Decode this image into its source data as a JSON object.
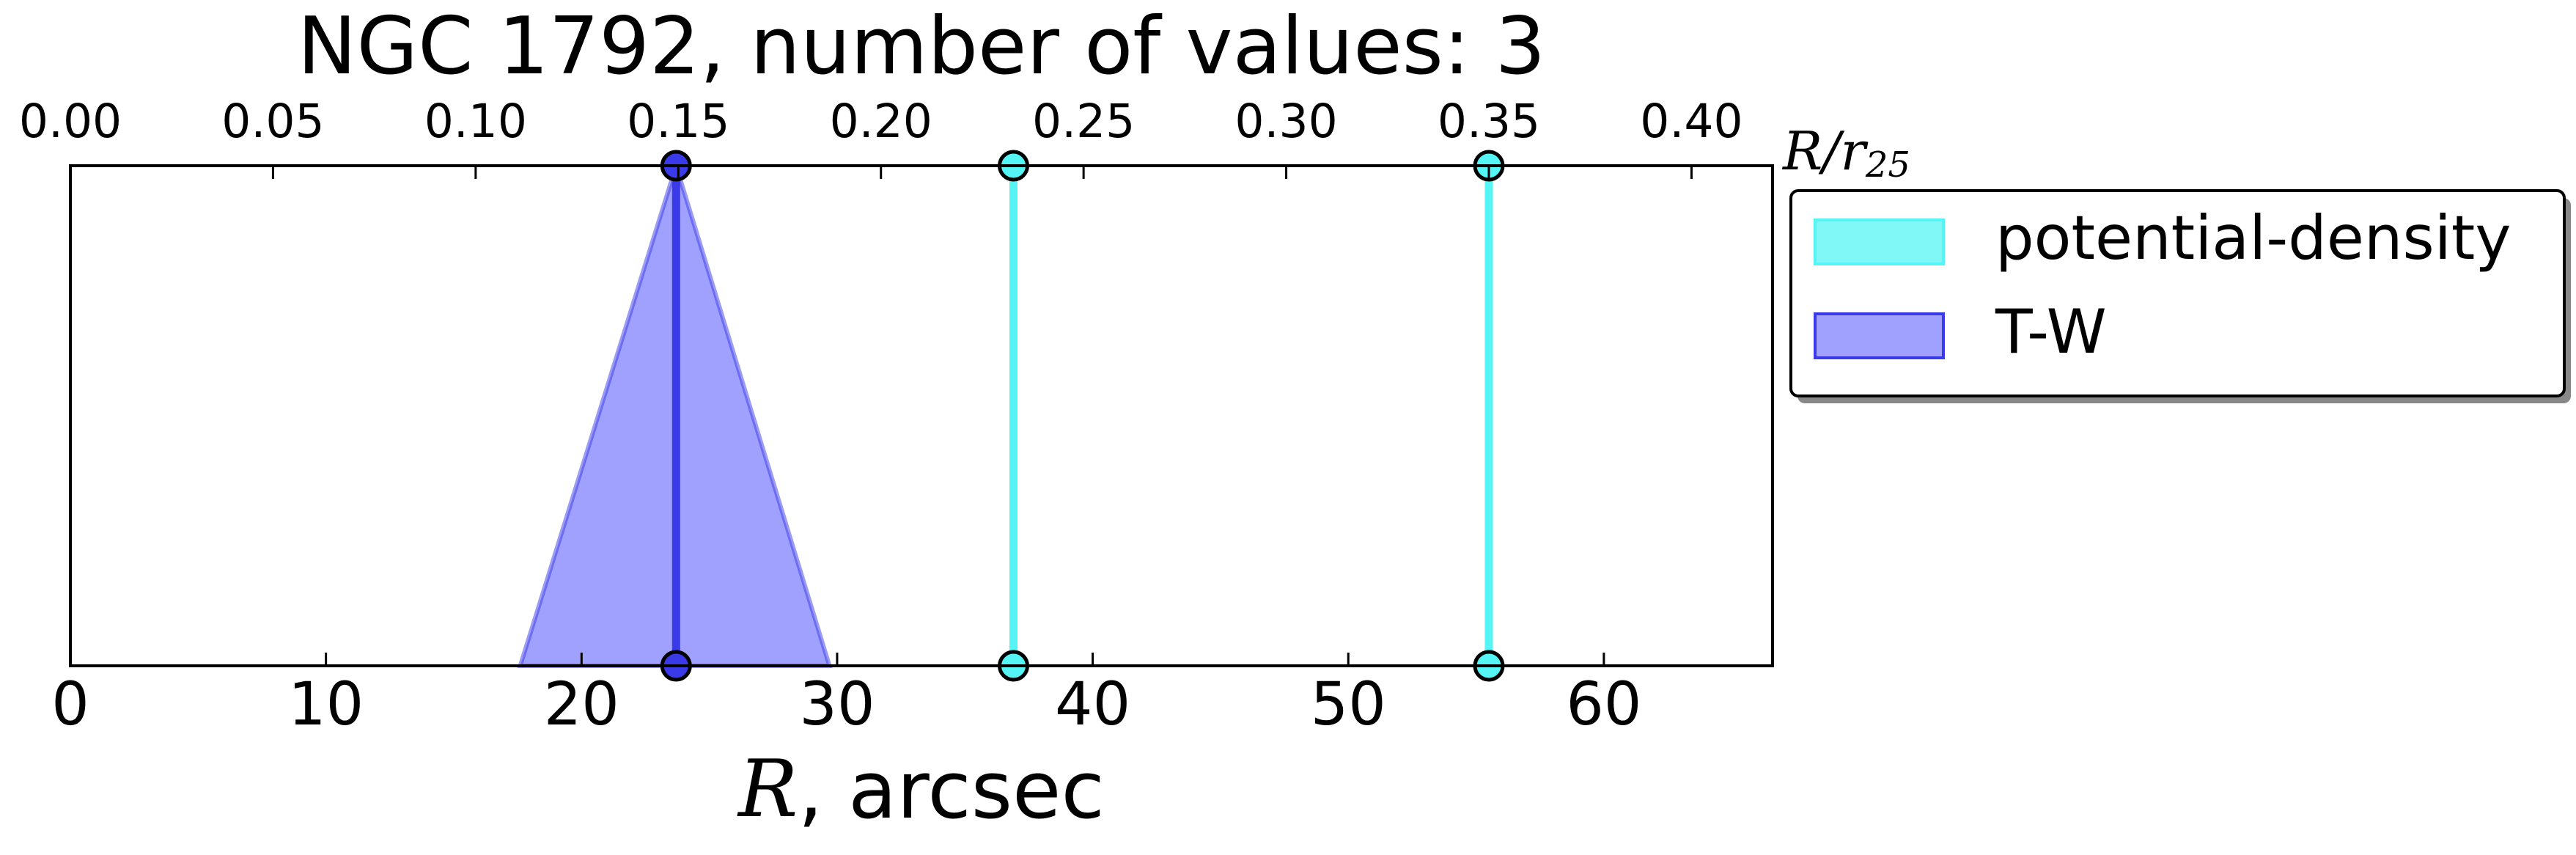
{
  "chart_data": {
    "type": "vlines",
    "title": "NGC 1792, number of values: 3",
    "xlabel": {
      "symbol": "R",
      "text": ", arcsec"
    },
    "x2label": {
      "symbol": "R/r",
      "sub": "25"
    },
    "xlim": [
      0,
      66.6
    ],
    "xticks": [
      0,
      10,
      20,
      30,
      40,
      50,
      60
    ],
    "x2lim": [
      0,
      0.42
    ],
    "x2ticks": [
      {
        "value": 0,
        "label": "0.00"
      },
      0.05,
      {
        "value": 0.1,
        "label": "0.10"
      },
      0.15,
      {
        "value": 0.2,
        "label": "0.20"
      },
      0.25,
      {
        "value": 0.3,
        "label": "0.30"
      },
      0.35,
      {
        "value": 0.4,
        "label": "0.40"
      }
    ],
    "legend": "outside-upper-right",
    "series": [
      {
        "name": "potential-density",
        "color": "#55f5f5",
        "values": [
          36.9,
          55.5
        ]
      },
      {
        "name": "T-W",
        "color": "#3a3ae8",
        "fill": "#8080ff",
        "values": [
          23.7
        ],
        "ranges": [
          [
            17.6,
            29.7
          ]
        ]
      }
    ]
  }
}
